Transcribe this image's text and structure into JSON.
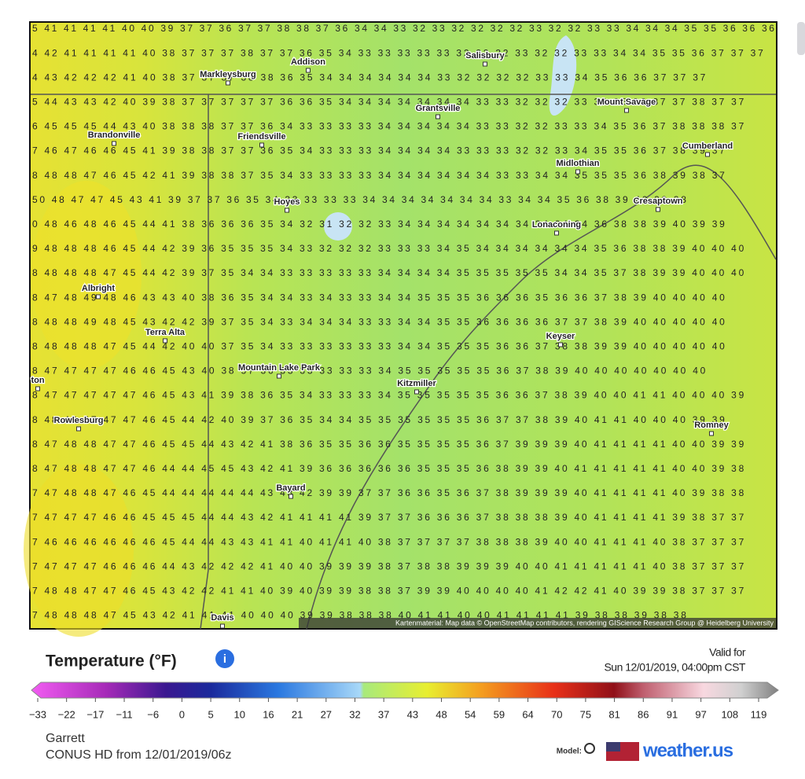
{
  "map": {
    "rows": [
      "5 41 41 41 41 40 40 39 37 37 36 37 37 38 38 37 36 34 34 33 32 33 32 32 32 32 33 32 32 33 33 34 34 34 35 35 36 36 36",
      "4 42 41 41 41 41 40 38 37 37 37 38 37 37 36 35 34 33 33 33 33 33 32 32 32 33 32 32 33 33 34 34 35 35 36 37 37 37",
      "4 43 42 42 42 41 40 38 37 37 37 38 38 36 35 34 34 34 34 34 34 33 32 32 32 32 33 33 34 35 36 36 37 37 37",
      "5 44 43 43 42 40 39 38 37 37 37 37 37 36 36 35 34 34 34 34 34 34 34 33 33 32 32 32 33 34 35 36 37 37 38 37 37",
      "6 45 45 45 44 43 40 38 38 38 37 37 36 34 33 33 33 33 34 34 34 34 34 33 33 32 32 33 33 34 35 36 37 38 38 38 37",
      "7 46 47 46 46 45 41 39 38 38 37 37 36 35 34 33 33 33 34 34 34 34 33 33 33 32 32 33 34 35 35 36 37 38 39 37",
      "8 48 48 47 46 45 42 41 39 38 38 37 35 34 33 33 33 33 34 34 34 34 34 34 33 33 34 34 35 35 35 36 38 39 38 37",
      "50 48 47 47 45 43 41 39 37 37 36 35 34 33 33 33 33 34 34 34 34 34 34 34 33 34 34 35 36 38 39 40 39 38",
      "0 48 46 48 46 45 44 41 38 36 36 36 35 34 32 31 32 32 33 34 34 34 34 34 34 34 34 34 34 36 38 38 39 40 39 39",
      "9 48 48 48 46 45 44 42 39 36 35 35 35 34 33 32 32 32 33 33 33 34 35 34 34 34 34 34 34 35 36 38 38 39 40 40 40",
      "8 48 48 48 47 45 44 42 39 37 35 34 34 33 33 33 33 33 34 34 34 34 35 35 35 35 35 34 34 35 37 38 39 39 40 40 40",
      "8 47 48 49 48 46 43 43 40 38 36 35 34 34 33 34 33 33 34 34 35 35 35 36 36 36 35 36 36 37 38 39 40 40 40 40",
      "8 48 48 49 48 45 43 42 42 39 37 35 34 33 34 34 34 33 33 34 34 35 35 36 36 36 36 37 37 38 39 40 40 40 40 40",
      "8 48 48 48 47 45 44 42 40 40 37 35 34 33 33 33 33 33 33 34 34 35 35 35 36 36 37 38 38 39 39 40 40 40 40 40",
      "8 47 47 47 47 46 46 45 43 40 38 37 36 33 33 33 33 33 34 35 35 35 35 35 36 37 38 39 40 40 40 40 40 40 40",
      "8 47 47 47 47 47 46 45 43 41 39 38 36 35 34 33 33 33 34 35 35 35 35 35 36 36 37 38 39 40 40 41 41 40 40 40 39",
      "8 48 48 47 47 47 46 45 44 42 40 39 37 36 35 34 34 35 35 35 35 35 35 36 37 37 38 39 40 41 41 40 40 40 39 39",
      "8 47 48 48 47 47 46 45 45 44 43 42 41 38 36 35 35 36 36 35 35 35 35 36 37 39 39 39 40 41 41 41 41 40 40 39 39",
      "8 47 48 48 47 47 46 44 44 45 45 43 42 41 39 36 36 36 36 36 35 35 35 36 38 39 39 40 41 41 41 41 41 40 40 39 38",
      "7 47 48 48 47 46 45 44 44 44 44 44 43 43 42 39 39 37 37 36 36 35 36 37 38 39 39 39 40 41 41 41 41 40 39 38 38",
      "7 47 47 47 46 46 45 45 45 44 44 43 42 41 41 41 41 39 37 37 36 36 36 37 38 38 38 39 40 41 41 41 41 39 38 37 37",
      "7 46 46 46 46 46 46 45 44 44 43 43 41 41 40 41 41 40 38 37 37 37 37 38 38 38 39 40 40 41 41 41 40 38 37 37 37",
      "7 47 47 47 46 46 46 44 43 42 42 42 41 40 40 39 39 39 38 37 38 38 39 39 39 40 40 41 41 41 41 41 40 38 37 37 37",
      "7 48 48 47 47 46 45 43 42 42 41 41 40 39 40 39 39 38 38 37 39 39 40 40 40 40 41 42 42 41 40 39 39 38 37 37 37",
      "7 48 48 48 47 45 43 42 41 41 41 40 40 40 39 39 38 38 38 40 41 41 40 40 41 41 41 41 39 38 38 39 38 38"
    ],
    "places": [
      "Addison",
      "Markleysburg",
      "Salisbury",
      "Grantsville",
      "Mount Savage",
      "Brandonville",
      "Friendsville",
      "Cumberland",
      "Midlothian",
      "Hoyes",
      "Cresaptown",
      "Lonaconing",
      "Albright",
      "Terra Alta",
      "Keyser",
      "Mountain Lake Park",
      "Kitzmiller",
      "Rowlesburg",
      "Romney",
      "Bayard",
      "Davis",
      "ton"
    ],
    "attribution": "Kartenmaterial: Map data © OpenStreetMap contributors, rendering GIScience Research Group @ Heidelberg University"
  },
  "legend": {
    "title": "Temperature (°F)",
    "valid_label": "Valid for",
    "valid_time": "Sun 12/01/2019, 04:00pm CST",
    "scale": [
      "−33",
      "−22",
      "−17",
      "−11",
      "−6",
      "0",
      "5",
      "10",
      "16",
      "21",
      "27",
      "32",
      "37",
      "43",
      "48",
      "54",
      "59",
      "64",
      "70",
      "75",
      "81",
      "86",
      "91",
      "97",
      "108",
      "119"
    ],
    "location": "Garrett",
    "model": "CONUS HD from 12/01/2019/06z",
    "model_label": "Model:",
    "brand": "weather.us"
  }
}
